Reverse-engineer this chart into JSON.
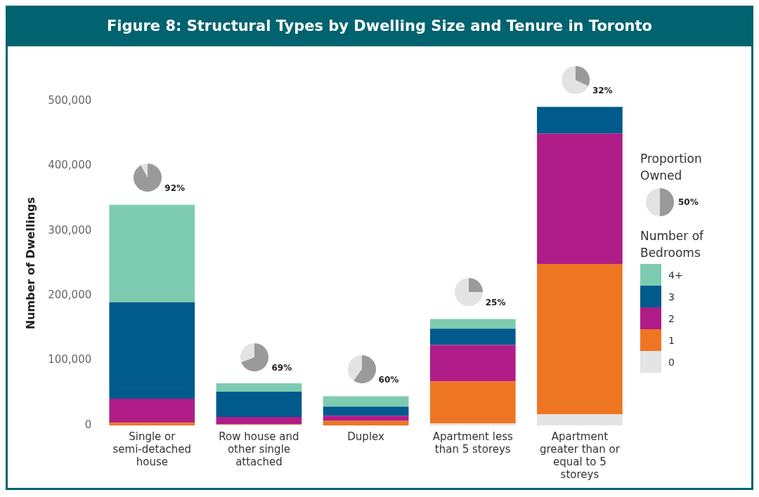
{
  "chart_data": {
    "type": "bar",
    "stacked": true,
    "title": "Figure 8: Structural Types by Dwelling Size and Tenure in Toronto",
    "ylabel": "Number of Dwellings",
    "legend_title": "Number of Bedrooms",
    "legend": "right",
    "grid": false,
    "categories": [
      "Single or semi-detached house",
      "Row house and other single attached",
      "Duplex",
      "Apartment less than 5 storeys",
      "Apartment greater than or equal to 5 storeys"
    ],
    "ylim": [
      0,
      500000
    ],
    "yticks": [
      0,
      {
        "value": 100000,
        "label": "100,000"
      },
      {
        "value": 200000,
        "label": "200,000"
      },
      {
        "value": 300000,
        "label": "300,000"
      },
      {
        "value": 400000,
        "label": "400,000"
      },
      {
        "value": 500000,
        "label": "500,000"
      }
    ],
    "series": [
      {
        "name": "0",
        "color": "#e4e4e4",
        "values": [
          null,
          1000,
          null,
          3000,
          17000
        ]
      },
      {
        "name": "1",
        "color": "#ee7623",
        "values": [
          4000,
          1000,
          7000,
          65000,
          232000
        ]
      },
      {
        "name": "2",
        "color": "#b01c87",
        "values": [
          37000,
          11000,
          8000,
          56000,
          201000
        ]
      },
      {
        "name": "3",
        "color": "#005a8c",
        "values": [
          149000,
          39000,
          14000,
          25000,
          41000
        ]
      },
      {
        "name": "4+",
        "color": "#7dcbb0",
        "values": [
          150000,
          13000,
          16000,
          15000,
          0
        ]
      }
    ],
    "annotations": [
      {
        "text": "92%",
        "x": "Single or semi-detached house",
        "y": 341000
      },
      {
        "text": "69%",
        "x": "Row house and other single attached",
        "y": 64000
      },
      {
        "text": "60%",
        "x": "Duplex",
        "y": 45000
      },
      {
        "text": "25%",
        "x": "Apartment less than 5 storeys",
        "y": 164000
      },
      {
        "text": "32%",
        "x": "Apartment greater than or equal to 5 storeys",
        "y": 491000
      },
      "Proportion Owned",
      "50%"
    ]
  }
}
